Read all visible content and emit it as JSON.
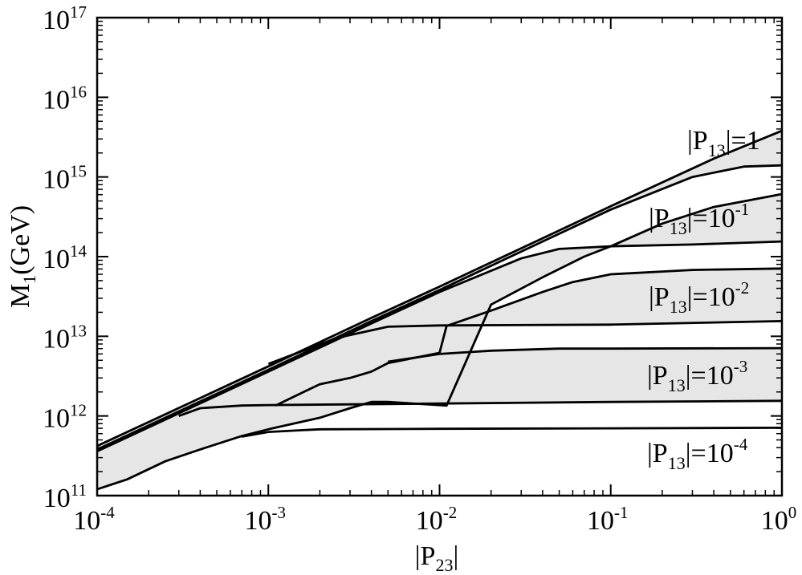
{
  "chart_data": {
    "type": "area",
    "xscale": "log",
    "yscale": "log",
    "xlim": [
      0.0001,
      1
    ],
    "ylim": [
      100000000000.0,
      1e+17
    ],
    "xlabel": {
      "base": "|P",
      "sub": "23",
      "end": "|"
    },
    "ylabel": {
      "base": "M",
      "sub": "1",
      "end": "(GeV)"
    },
    "x_ticks": [
      {
        "base": "10",
        "exp": "-4",
        "value": 0.0001
      },
      {
        "base": "10",
        "exp": "-3",
        "value": 0.001
      },
      {
        "base": "10",
        "exp": "-2",
        "value": 0.01
      },
      {
        "base": "10",
        "exp": "-1",
        "value": 0.1
      },
      {
        "base": "10",
        "exp": "0",
        "value": 1
      }
    ],
    "y_ticks": [
      {
        "base": "10",
        "exp": "11",
        "value": 100000000000.0
      },
      {
        "base": "10",
        "exp": "12",
        "value": 1000000000000.0
      },
      {
        "base": "10",
        "exp": "13",
        "value": 10000000000000.0
      },
      {
        "base": "10",
        "exp": "14",
        "value": 100000000000000.0
      },
      {
        "base": "10",
        "exp": "15",
        "value": 1000000000000000.0
      },
      {
        "base": "10",
        "exp": "16",
        "value": 1e+16
      },
      {
        "base": "10",
        "exp": "17",
        "value": 1e+17
      }
    ],
    "grid": false,
    "fill_color": "#e6e6e6",
    "line_color": "#000000",
    "series": [
      {
        "label": {
          "base": "|P",
          "sub": "13",
          "mid": "|=1",
          "exp": ""
        },
        "upper": [
          [
            0.0001,
            420000000000.0
          ],
          [
            0.00025,
            1050000000000.0
          ],
          [
            0.001,
            4200000000000.0
          ],
          [
            0.004,
            17000000000000.0
          ],
          [
            0.01,
            42000000000000.0
          ],
          [
            0.04,
            170000000000000.0
          ],
          [
            0.1,
            430000000000000.0
          ],
          [
            0.4,
            1700000000000000.0
          ],
          [
            1,
            3800000000000000.0
          ]
        ],
        "lower": [
          [
            0.0001,
            380000000000.0
          ],
          [
            0.00025,
            950000000000.0
          ],
          [
            0.001,
            3800000000000.0
          ],
          [
            0.004,
            15500000000000.0
          ],
          [
            0.01,
            38000000000000.0
          ],
          [
            0.04,
            155000000000000.0
          ],
          [
            0.1,
            390000000000000.0
          ],
          [
            0.3,
            1000000000000000.0
          ],
          [
            0.6,
            1350000000000000.0
          ],
          [
            1,
            1400000000000000.0
          ]
        ]
      },
      {
        "label": {
          "base": "|P",
          "sub": "13",
          "mid": "|=10",
          "exp": "-1"
        },
        "upper": [
          [
            0.0001,
            360000000000.0
          ],
          [
            0.00025,
            900000000000.0
          ],
          [
            0.001,
            3600000000000.0
          ],
          [
            0.004,
            14500000000000.0
          ],
          [
            0.01,
            36000000000000.0
          ],
          [
            0.03,
            95000000000000.0
          ],
          [
            0.05,
            125000000000000.0
          ],
          [
            0.1,
            135000000000000.0
          ],
          [
            0.3,
            142000000000000.0
          ],
          [
            1,
            155000000000000.0
          ]
        ],
        "lower": [
          [
            0.0001,
            120000000000.0
          ],
          [
            0.00015,
            160000000000.0
          ],
          [
            0.00025,
            270000000000.0
          ],
          [
            0.0004,
            380000000000.0
          ],
          [
            0.0007,
            560000000000.0
          ],
          [
            0.001,
            680000000000.0
          ],
          [
            0.002,
            950000000000.0
          ],
          [
            0.003,
            1250000000000.0
          ],
          [
            0.004,
            1500000000000.0
          ],
          [
            0.005,
            1500000000000.0
          ],
          [
            0.011,
            1350000000000.0
          ],
          [
            0.02,
            25000000000000.0
          ],
          [
            0.04,
            55000000000000.0
          ],
          [
            0.07,
            100000000000000.0
          ],
          [
            0.1,
            135000000000000.0
          ],
          [
            0.2,
            260000000000000.0
          ],
          [
            0.4,
            420000000000000.0
          ],
          [
            1,
            610000000000000.0
          ]
        ]
      },
      {
        "label": {
          "base": "|P",
          "sub": "13",
          "mid": "|=10",
          "exp": "-2"
        },
        "upper": [
          [
            0.001,
            4500000000000.0
          ],
          [
            0.0025,
            9500000000000.0
          ],
          [
            0.005,
            13200000000000.0
          ],
          [
            0.01,
            13700000000000.0
          ],
          [
            0.1,
            14000000000000.0
          ],
          [
            1,
            15500000000000.0
          ]
        ],
        "lower": [
          [
            0.0011,
            1350000000000.0
          ],
          [
            0.002,
            2500000000000.0
          ],
          [
            0.003,
            3000000000000.0
          ],
          [
            0.004,
            3600000000000.0
          ],
          [
            0.005,
            4600000000000.0
          ],
          [
            0.01,
            6200000000000.0
          ],
          [
            0.011,
            13500000000000.0
          ],
          [
            0.02,
            21000000000000.0
          ],
          [
            0.04,
            36000000000000.0
          ],
          [
            0.06,
            48000000000000.0
          ],
          [
            0.1,
            60000000000000.0
          ],
          [
            0.3,
            68000000000000.0
          ],
          [
            1,
            71000000000000.0
          ]
        ]
      },
      {
        "label": {
          "base": "|P",
          "sub": "13",
          "mid": "|=10",
          "exp": "-3"
        },
        "upper": [
          [
            0.0003,
            1000000000000.0
          ],
          [
            0.0004,
            1250000000000.0
          ],
          [
            0.0007,
            1350000000000.0
          ],
          [
            0.001,
            1370000000000.0
          ],
          [
            0.01,
            1430000000000.0
          ],
          [
            0.1,
            1500000000000.0
          ],
          [
            1,
            1550000000000.0
          ]
        ],
        "lower": [
          [
            0.005,
            4800000000000.0
          ],
          [
            0.01,
            6000000000000.0
          ],
          [
            0.02,
            6600000000000.0
          ],
          [
            0.05,
            7000000000000.0
          ],
          [
            0.1,
            7000000000000.0
          ],
          [
            1,
            7100000000000.0
          ]
        ]
      },
      {
        "label": {
          "base": "|P",
          "sub": "13",
          "mid": "|=10",
          "exp": "-4"
        },
        "upper": [],
        "lower": [
          [
            0.0007,
            550000000000.0
          ],
          [
            0.001,
            630000000000.0
          ],
          [
            0.002,
            680000000000.0
          ],
          [
            0.01,
            690000000000.0
          ],
          [
            0.1,
            700000000000.0
          ],
          [
            1,
            710000000000.0
          ]
        ]
      }
    ]
  }
}
